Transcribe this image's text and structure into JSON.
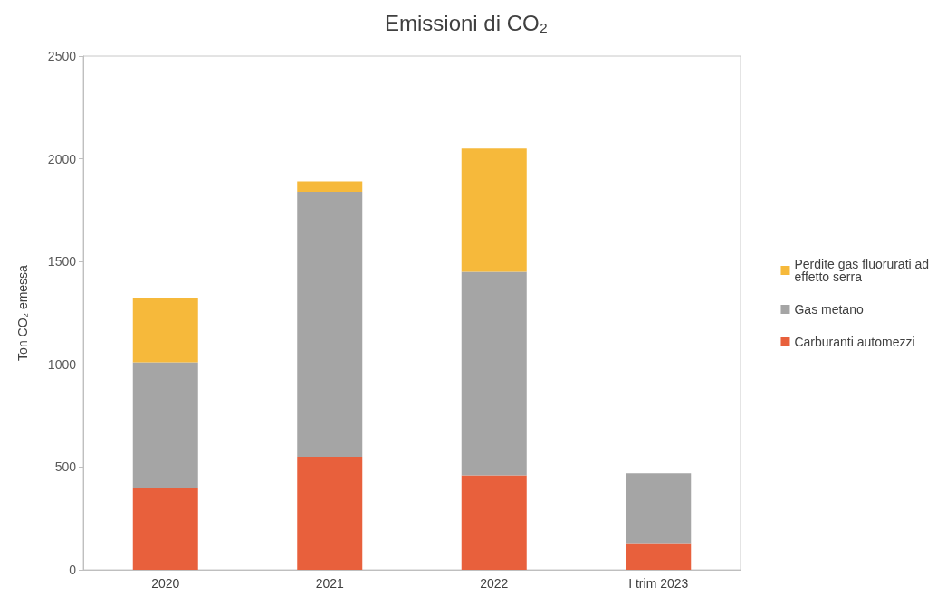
{
  "chart_data": {
    "type": "bar",
    "title": "Emissioni di CO₂",
    "ylabel": "Ton CO₂ emessa",
    "categories": [
      "2020",
      "2021",
      "2022",
      "I trim 2023"
    ],
    "stacked": true,
    "ylim": [
      0,
      2500
    ],
    "yticks": [
      0,
      500,
      1000,
      1500,
      2000,
      2500
    ],
    "grid": false,
    "legend": "right",
    "series": [
      {
        "name": "Carburanti automezzi",
        "color": "#e8603c",
        "values": [
          400,
          550,
          460,
          130
        ]
      },
      {
        "name": "Gas metano",
        "color": "#a5a5a5",
        "values": [
          610,
          1290,
          990,
          340
        ]
      },
      {
        "name": "Perdite gas fluorurati ad effetto serra",
        "color": "#f6b93b",
        "values": [
          310,
          50,
          600,
          null
        ]
      }
    ]
  }
}
